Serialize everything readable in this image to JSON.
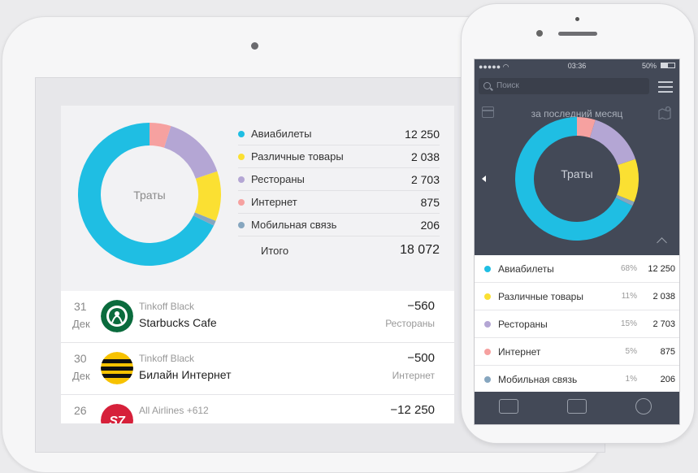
{
  "chart_data": {
    "type": "pie",
    "title": "Траты",
    "categories": [
      "Авиабилеты",
      "Различные товары",
      "Рестораны",
      "Интернет",
      "Мобильная связь"
    ],
    "values": [
      12250,
      2038,
      2703,
      875,
      206
    ],
    "colors": [
      "#1fbee3",
      "#fbe032",
      "#b4a6d4",
      "#f6a1a0",
      "#86a6bf"
    ]
  },
  "tablet": {
    "donut_label": "Траты",
    "legend": [
      {
        "label": "Авиабилеты",
        "value": "12 250"
      },
      {
        "label": "Различные товары",
        "value": "2 038"
      },
      {
        "label": "Рестораны",
        "value": "2 703"
      },
      {
        "label": "Интернет",
        "value": "875"
      },
      {
        "label": "Мобильная связь",
        "value": "206"
      }
    ],
    "total_label": "Итого",
    "total_value": "18 072",
    "transactions": [
      {
        "day": "31",
        "month": "Дек",
        "card": "Tinkoff Black",
        "merchant": "Starbucks Cafe",
        "amount": "−560",
        "category": "Рестораны",
        "logo": "starbucks-logo"
      },
      {
        "day": "30",
        "month": "Дек",
        "card": "Tinkoff Black",
        "merchant": "Билайн Интернет",
        "amount": "−500",
        "category": "Интернет",
        "logo": "beeline-logo"
      },
      {
        "day": "26",
        "month": "",
        "card": "All Airlines +612",
        "merchant": "",
        "amount": "−12 250",
        "category": "",
        "logo": "s7-logo"
      }
    ]
  },
  "phone": {
    "status": {
      "time": "03:36",
      "battery": "50%"
    },
    "search_placeholder": "Поиск",
    "period": "за последний месяц",
    "donut_label": "Траты",
    "legend": [
      {
        "label": "Авиабилеты",
        "percent": "68%",
        "value": "12 250"
      },
      {
        "label": "Различные товары",
        "percent": "11%",
        "value": "2 038"
      },
      {
        "label": "Рестораны",
        "percent": "15%",
        "value": "2 703"
      },
      {
        "label": "Интернет",
        "percent": "5%",
        "value": "875"
      },
      {
        "label": "Мобильная связь",
        "percent": "1%",
        "value": "206"
      }
    ],
    "tab_icons": [
      "card-icon",
      "list-icon",
      "ruble-transfer-icon"
    ]
  }
}
